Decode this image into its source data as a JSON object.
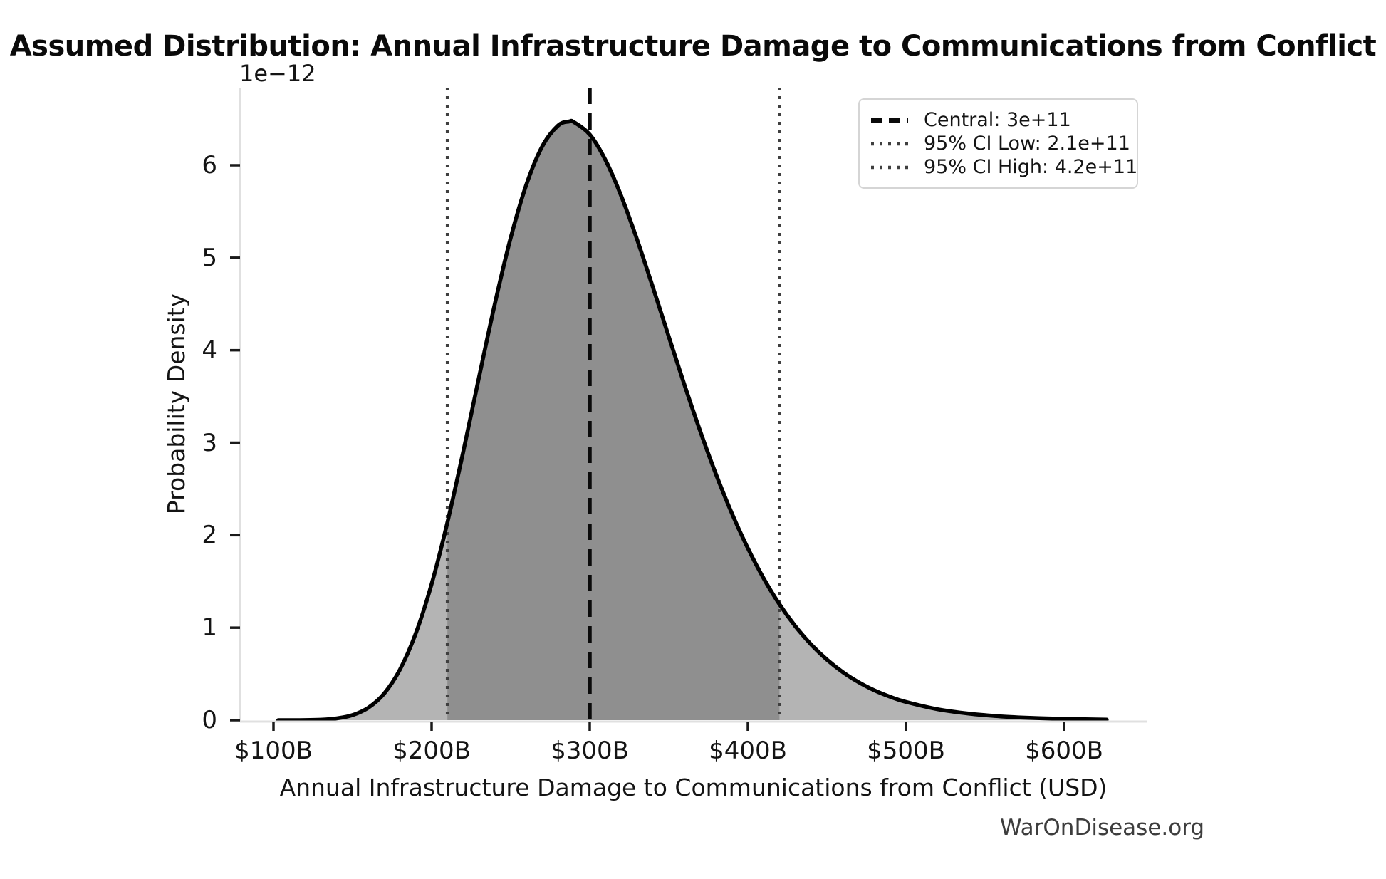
{
  "watermark": "WarOnDisease.org",
  "chart_data": {
    "type": "area",
    "title": "Assumed Distribution: Annual Infrastructure Damage to Communications from Conflict",
    "xlabel": "Annual Infrastructure Damage to Communications from Conflict (USD)",
    "ylabel": "Probability Density",
    "y_scale_offset_label": "1e−12",
    "x_tick_labels": [
      "$100B",
      "$200B",
      "$300B",
      "$400B",
      "$500B",
      "$600B"
    ],
    "x_tick_values_billions": [
      100,
      200,
      300,
      400,
      500,
      600
    ],
    "y_tick_labels": [
      "0",
      "1",
      "2",
      "3",
      "4",
      "5",
      "6"
    ],
    "y_tick_values": [
      0,
      1,
      2,
      3,
      4,
      5,
      6
    ],
    "xlim_billions": [
      79,
      652
    ],
    "ylim_density_1e12": [
      0,
      6.84
    ],
    "grid": false,
    "legend_position": "upper right",
    "central_billions": 300,
    "ci_low_billions": 210,
    "ci_high_billions": 420,
    "legend": [
      {
        "label": "Central: 3e+11",
        "style": "dashed",
        "color": "#0a0a0a"
      },
      {
        "label": "95% CI Low: 2.1e+11",
        "style": "dotted",
        "color": "#3f3f3f"
      },
      {
        "label": "95% CI High: 4.2e+11",
        "style": "dotted",
        "color": "#3f3f3f"
      }
    ],
    "curve": {
      "x_billions": [
        103,
        110,
        120,
        130,
        140,
        150,
        160,
        170,
        180,
        190,
        200,
        210,
        220,
        230,
        240,
        250,
        260,
        270,
        280,
        287,
        290,
        300,
        310,
        320,
        330,
        340,
        350,
        360,
        370,
        380,
        390,
        400,
        410,
        420,
        430,
        440,
        450,
        460,
        470,
        480,
        490,
        500,
        520,
        540,
        560,
        580,
        600,
        620,
        627
      ],
      "density_1e12": [
        0.0,
        0.0002,
        0.001,
        0.005,
        0.019,
        0.055,
        0.135,
        0.288,
        0.548,
        0.939,
        1.472,
        2.139,
        2.902,
        3.71,
        4.502,
        5.214,
        5.794,
        6.205,
        6.43,
        6.474,
        6.467,
        6.333,
        6.055,
        5.664,
        5.194,
        4.678,
        4.147,
        3.621,
        3.119,
        2.653,
        2.232,
        1.859,
        1.533,
        1.253,
        1.017,
        0.819,
        0.655,
        0.52,
        0.411,
        0.323,
        0.253,
        0.197,
        0.118,
        0.07,
        0.041,
        0.024,
        0.014,
        0.008,
        0.006
      ]
    },
    "peak_density_1e12": 6.47,
    "colors": {
      "line": "#000000",
      "fill_light": "#b4b4b4",
      "fill_dark": "#8f8f8f",
      "central_line": "#0a0a0a",
      "ci_line": "#3f3f3f",
      "spine": "#e0e0e0",
      "tick": "#1a1a1a"
    }
  }
}
